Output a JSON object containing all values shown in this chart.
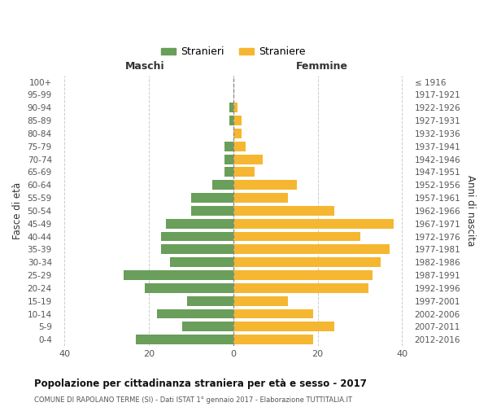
{
  "age_groups": [
    "0-4",
    "5-9",
    "10-14",
    "15-19",
    "20-24",
    "25-29",
    "30-34",
    "35-39",
    "40-44",
    "45-49",
    "50-54",
    "55-59",
    "60-64",
    "65-69",
    "70-74",
    "75-79",
    "80-84",
    "85-89",
    "90-94",
    "95-99",
    "100+"
  ],
  "birth_years": [
    "2012-2016",
    "2007-2011",
    "2002-2006",
    "1997-2001",
    "1992-1996",
    "1987-1991",
    "1982-1986",
    "1977-1981",
    "1972-1976",
    "1967-1971",
    "1962-1966",
    "1957-1961",
    "1952-1956",
    "1947-1951",
    "1942-1946",
    "1937-1941",
    "1932-1936",
    "1927-1931",
    "1922-1926",
    "1917-1921",
    "≤ 1916"
  ],
  "maschi": [
    23,
    12,
    18,
    11,
    21,
    26,
    15,
    17,
    17,
    16,
    10,
    10,
    5,
    2,
    2,
    2,
    0,
    1,
    1,
    0,
    0
  ],
  "femmine": [
    19,
    24,
    19,
    13,
    32,
    33,
    35,
    37,
    30,
    38,
    24,
    13,
    15,
    5,
    7,
    3,
    2,
    2,
    1,
    0,
    0
  ],
  "color_maschi": "#6a9e5b",
  "color_femmine": "#f5b731",
  "background_color": "#ffffff",
  "grid_color": "#cccccc",
  "title": "Popolazione per cittadinanza straniera per età e sesso - 2017",
  "subtitle": "COMUNE DI RAPOLANO TERME (SI) - Dati ISTAT 1° gennaio 2017 - Elaborazione TUTTITALIA.IT",
  "ylabel_left": "Fasce di età",
  "ylabel_right": "Anni di nascita",
  "header_left": "Maschi",
  "header_right": "Femmine",
  "legend_maschi": "Stranieri",
  "legend_femmine": "Straniere",
  "xlim": 42
}
